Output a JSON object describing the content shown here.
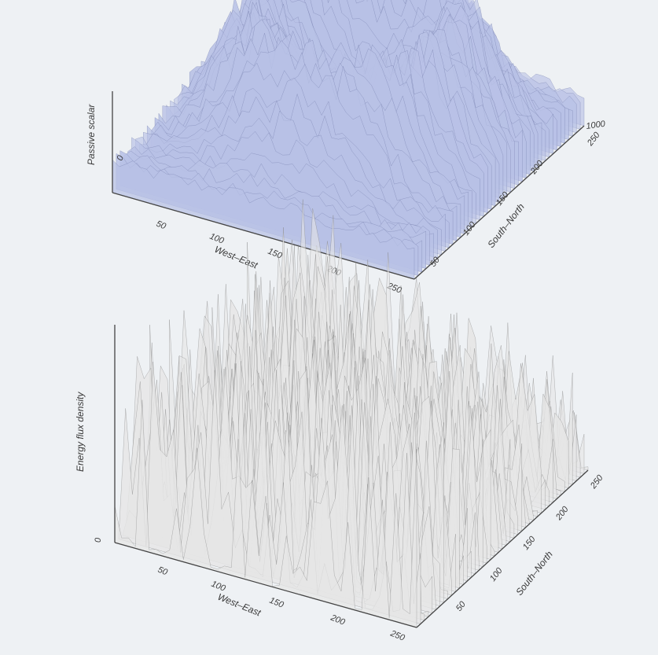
{
  "chart_data": [
    {
      "type": "surface",
      "title": "",
      "xlabel": "West–East",
      "ylabel": "South–North",
      "zlabel": "Passive scalar",
      "x_ticks": [
        "50",
        "100",
        "150",
        "200",
        "250"
      ],
      "y_ticks": [
        "50",
        "100",
        "150",
        "200",
        "250"
      ],
      "z_ticks": [
        "0",
        "1000"
      ],
      "xlim": [
        0,
        250
      ],
      "ylim": [
        0,
        250
      ],
      "surface_color": "#b8c1e6",
      "edge_color": "#6f78a8",
      "grid": false
    },
    {
      "type": "surface",
      "title": "",
      "xlabel": "West–East",
      "ylabel": "South–North",
      "zlabel": "Energy flux density",
      "x_ticks": [
        "50",
        "100",
        "150",
        "200",
        "250"
      ],
      "y_ticks": [
        "50",
        "100",
        "150",
        "200",
        "250"
      ],
      "z_ticks": [
        "0"
      ],
      "xlim": [
        0,
        250
      ],
      "ylim": [
        0,
        250
      ],
      "surface_color": "#e6e6e6",
      "edge_color": "#7a7a7a",
      "floor_color": "#a9a9a9",
      "grid": false
    }
  ]
}
